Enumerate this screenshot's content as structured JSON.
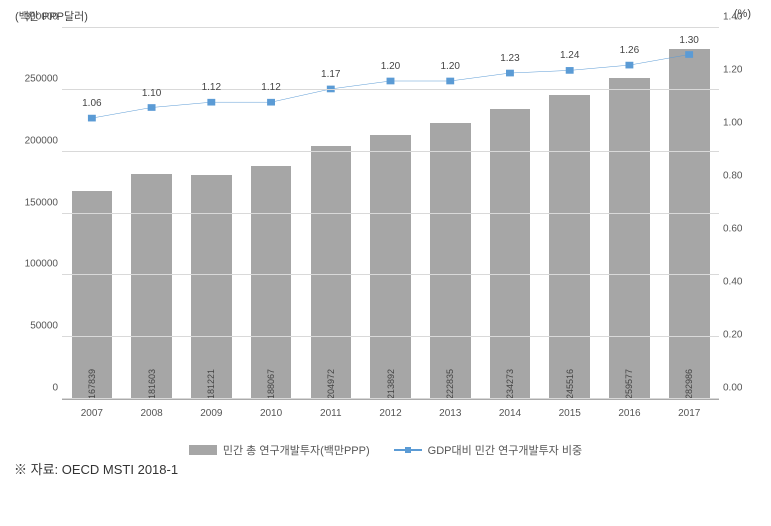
{
  "chart": {
    "type": "bar+line",
    "y_left_title": "(백만 PPP달러)",
    "y_right_title": "(%)",
    "background_color": "#ffffff",
    "grid_color": "#d9d9d9",
    "x_categories": [
      "2007",
      "2008",
      "2009",
      "2010",
      "2011",
      "2012",
      "2013",
      "2014",
      "2015",
      "2016",
      "2017"
    ],
    "y_left": {
      "min": 0,
      "max": 300000,
      "step": 50000,
      "ticks": [
        "0",
        "50000",
        "100000",
        "150000",
        "200000",
        "250000",
        "300000"
      ]
    },
    "y_right": {
      "min": 0.0,
      "max": 1.4,
      "step": 0.2,
      "ticks": [
        "0.00",
        "0.20",
        "0.40",
        "0.60",
        "0.80",
        "1.00",
        "1.20",
        "1.40"
      ]
    },
    "bars": {
      "color": "#a6a6a6",
      "values": [
        167839,
        181603,
        181221,
        188067,
        204972,
        213892,
        222835,
        234273,
        245516,
        259577,
        282986
      ],
      "labels": [
        "167839",
        "181603",
        "181221",
        "188067",
        "204972",
        "213892",
        "222835",
        "234273",
        "245516",
        "259577",
        "282986"
      ]
    },
    "line": {
      "color": "#5b9bd5",
      "marker": "square",
      "values": [
        1.06,
        1.1,
        1.12,
        1.12,
        1.17,
        1.2,
        1.2,
        1.23,
        1.24,
        1.26,
        1.3
      ],
      "labels": [
        "1.06",
        "1.10",
        "1.12",
        "1.12",
        "1.17",
        "1.20",
        "1.20",
        "1.23",
        "1.24",
        "1.26",
        "1.30"
      ]
    },
    "legend": {
      "bar": "민간 총 연구개발투자(백만PPP)",
      "line": "GDP대비 민간 연구개발투자 비중"
    }
  },
  "source": "※ 자료: OECD MSTI 2018-1"
}
